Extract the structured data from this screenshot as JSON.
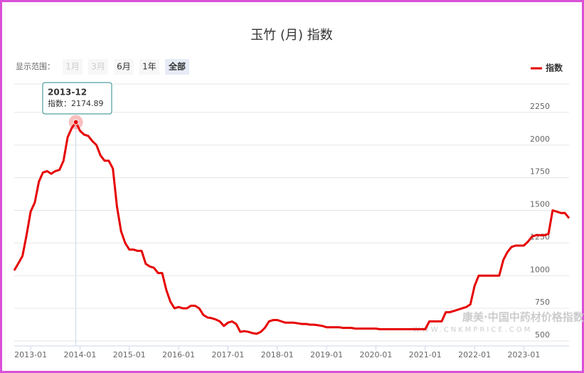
{
  "chart_data": {
    "type": "line",
    "title": "玉竹 (月) 指数",
    "range_selector": {
      "label": "显示范围：",
      "buttons": [
        "1月",
        "3月",
        "6月",
        "1年",
        "全部"
      ]
    },
    "watermark": [
      "康美·中国中药材价格指数",
      "WWW.CNKMPRICE.COM"
    ],
    "categories": [
      "2012-09",
      "2012-10",
      "2012-11",
      "2012-12",
      "2013-01",
      "2013-02",
      "2013-03",
      "2013-04",
      "2013-05",
      "2013-06",
      "2013-07",
      "2013-08",
      "2013-09",
      "2013-10",
      "2013-11",
      "2013-12",
      "2014-01",
      "2014-02",
      "2014-03",
      "2014-04",
      "2014-05",
      "2014-06",
      "2014-07",
      "2014-08",
      "2014-09",
      "2014-10",
      "2014-11",
      "2014-12",
      "2015-01",
      "2015-02",
      "2015-03",
      "2015-04",
      "2015-05",
      "2015-06",
      "2015-07",
      "2015-08",
      "2015-09",
      "2015-10",
      "2015-11",
      "2015-12",
      "2016-01",
      "2016-02",
      "2016-03",
      "2016-04",
      "2016-05",
      "2016-06",
      "2016-07",
      "2016-08",
      "2016-09",
      "2016-10",
      "2016-11",
      "2016-12",
      "2017-01",
      "2017-02",
      "2017-03",
      "2017-04",
      "2017-05",
      "2017-06",
      "2017-07",
      "2017-08",
      "2017-09",
      "2017-10",
      "2017-11",
      "2017-12",
      "2018-01",
      "2018-02",
      "2018-03",
      "2018-04",
      "2018-05",
      "2018-06",
      "2018-07",
      "2018-08",
      "2018-09",
      "2018-10",
      "2018-11",
      "2018-12",
      "2019-01",
      "2019-02",
      "2019-03",
      "2019-04",
      "2019-05",
      "2019-06",
      "2019-07",
      "2019-08",
      "2019-09",
      "2019-10",
      "2019-11",
      "2019-12",
      "2020-01",
      "2020-02",
      "2020-03",
      "2020-04",
      "2020-05",
      "2020-06",
      "2020-07",
      "2020-08",
      "2020-09",
      "2020-10",
      "2020-11",
      "2020-12",
      "2021-01",
      "2021-02",
      "2021-03",
      "2021-04",
      "2021-05",
      "2021-06",
      "2021-07",
      "2021-08",
      "2021-09",
      "2021-10",
      "2021-11",
      "2021-12",
      "2022-01",
      "2022-02",
      "2022-03",
      "2022-04",
      "2022-05",
      "2022-06",
      "2022-07",
      "2022-08",
      "2022-09",
      "2022-10",
      "2022-11",
      "2022-12",
      "2023-01",
      "2023-02",
      "2023-03",
      "2023-04",
      "2023-05",
      "2023-06",
      "2023-07",
      "2023-08",
      "2023-09",
      "2023-10",
      "2023-11",
      "2023-12"
    ],
    "series": [
      {
        "name": "指数",
        "color": "#e60000",
        "values": [
          1040,
          1094,
          1150,
          1310,
          1490,
          1560,
          1720,
          1790,
          1800,
          1780,
          1800,
          1810,
          1880,
          2060,
          2130,
          2174.89,
          2110,
          2080,
          2070,
          2030,
          2000,
          1920,
          1880,
          1880,
          1820,
          1530,
          1340,
          1250,
          1200,
          1200,
          1190,
          1190,
          1090,
          1070,
          1060,
          1020,
          1020,
          890,
          800,
          750,
          760,
          750,
          750,
          770,
          770,
          750,
          700,
          680,
          675,
          665,
          650,
          615,
          640,
          650,
          630,
          570,
          575,
          570,
          560,
          555,
          570,
          600,
          650,
          660,
          660,
          650,
          640,
          640,
          640,
          635,
          630,
          630,
          625,
          625,
          620,
          615,
          605,
          605,
          605,
          605,
          600,
          600,
          600,
          595,
          595,
          595,
          595,
          595,
          595,
          590,
          590,
          590,
          590,
          590,
          590,
          590,
          590,
          590,
          590,
          590,
          590,
          650,
          650,
          650,
          650,
          720,
          720,
          730,
          740,
          750,
          760,
          780,
          920,
          1000,
          1000,
          1000,
          1000,
          1000,
          1000,
          1120,
          1180,
          1220,
          1230,
          1230,
          1230,
          1260,
          1300,
          1310,
          1310,
          1310,
          1320,
          1500,
          1490,
          1480,
          1480,
          1440
        ]
      }
    ],
    "ylim": [
      500,
      2500
    ],
    "yticks": [
      500,
      750,
      1000,
      1250,
      1500,
      1750,
      2000,
      2250
    ],
    "grid": true,
    "legend": "top-right",
    "tooltip": {
      "x": "2013-12",
      "series": "指数",
      "value": 2174.89
    }
  }
}
